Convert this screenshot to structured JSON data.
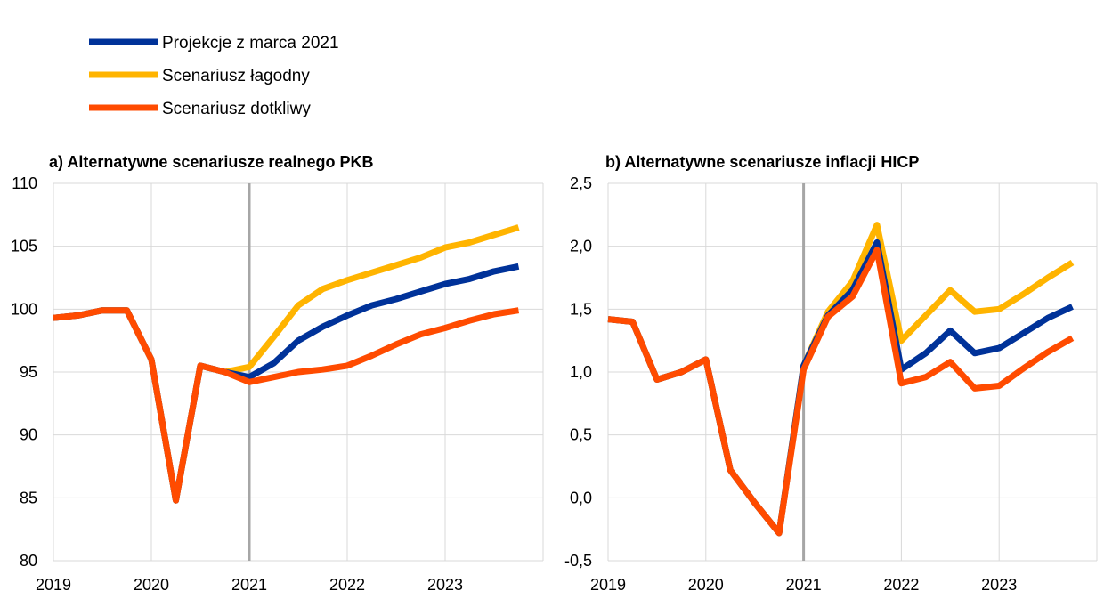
{
  "legend": [
    {
      "label": "Projekcje z marca 2021",
      "color": "#003299"
    },
    {
      "label": "Scenariusz łagodny",
      "color": "#FFB400"
    },
    {
      "label": "Scenariusz dotkliwy",
      "color": "#FF4B00"
    }
  ],
  "chart_data": [
    {
      "type": "line",
      "title": "a) Alternatywne   scenariusze  realnego  PKB",
      "x": [
        "2019Q1",
        "2019Q2",
        "2019Q3",
        "2019Q4",
        "2020Q1",
        "2020Q2",
        "2020Q3",
        "2020Q4",
        "2021Q1",
        "2021Q2",
        "2021Q3",
        "2021Q4",
        "2022Q1",
        "2022Q2",
        "2022Q3",
        "2022Q4",
        "2023Q1",
        "2023Q2",
        "2023Q3",
        "2023Q4"
      ],
      "xtick_labels": [
        "2019",
        "2020",
        "2021",
        "2022",
        "2023"
      ],
      "ytick_labels": [
        "80",
        "85",
        "90",
        "95",
        "100",
        "105",
        "110"
      ],
      "ylim": [
        80,
        110
      ],
      "grid": true,
      "legend_position": "top-left",
      "series": [
        {
          "name": "Projekcje z marca 2021",
          "color": "#003299",
          "values": [
            99.3,
            99.5,
            99.9,
            99.9,
            96.0,
            84.8,
            95.5,
            95.0,
            94.6,
            95.7,
            97.5,
            98.6,
            99.5,
            100.3,
            100.8,
            101.4,
            102.0,
            102.4,
            103.0,
            103.4
          ]
        },
        {
          "name": "Scenariusz łagodny",
          "color": "#FFB400",
          "values": [
            99.3,
            99.5,
            99.9,
            99.9,
            96.0,
            84.8,
            95.5,
            95.0,
            95.4,
            97.8,
            100.3,
            101.6,
            102.3,
            102.9,
            103.5,
            104.1,
            104.9,
            105.3,
            105.9,
            106.5
          ]
        },
        {
          "name": "Scenariusz dotkliwy",
          "color": "#FF4B00",
          "values": [
            99.3,
            99.5,
            99.9,
            99.9,
            96.0,
            84.8,
            95.5,
            95.0,
            94.2,
            94.6,
            95.0,
            95.2,
            95.5,
            96.3,
            97.2,
            98.0,
            98.5,
            99.1,
            99.6,
            99.9
          ]
        }
      ]
    },
    {
      "type": "line",
      "title": "b) Alternatywne  scenariusze  inflacji HICP",
      "x": [
        "2019Q1",
        "2019Q2",
        "2019Q3",
        "2019Q4",
        "2020Q1",
        "2020Q2",
        "2020Q3",
        "2020Q4",
        "2021Q1",
        "2021Q2",
        "2021Q3",
        "2021Q4",
        "2022Q1",
        "2022Q2",
        "2022Q3",
        "2022Q4",
        "2023Q1",
        "2023Q2",
        "2023Q3",
        "2023Q4"
      ],
      "xtick_labels": [
        "2019",
        "2020",
        "2021",
        "2022",
        "2023"
      ],
      "ytick_labels": [
        "-0,5",
        "0,0",
        "0,5",
        "1,0",
        "1,5",
        "2,0",
        "2,5"
      ],
      "ylim": [
        -0.5,
        2.5
      ],
      "grid": true,
      "series": [
        {
          "name": "Projekcje z marca 2021",
          "color": "#003299",
          "values": [
            1.42,
            1.4,
            0.94,
            1.0,
            1.1,
            0.22,
            -0.04,
            -0.28,
            1.05,
            1.45,
            1.65,
            2.03,
            1.02,
            1.15,
            1.33,
            1.15,
            1.19,
            1.31,
            1.43,
            1.52
          ]
        },
        {
          "name": "Scenariusz łagodny",
          "color": "#FFB400",
          "values": [
            1.42,
            1.4,
            0.94,
            1.0,
            1.1,
            0.22,
            -0.04,
            -0.28,
            1.05,
            1.48,
            1.72,
            2.17,
            1.25,
            1.45,
            1.65,
            1.48,
            1.5,
            1.62,
            1.75,
            1.87
          ]
        },
        {
          "name": "Scenariusz dotkliwy",
          "color": "#FF4B00",
          "values": [
            1.42,
            1.4,
            0.94,
            1.0,
            1.1,
            0.22,
            -0.04,
            -0.28,
            1.02,
            1.44,
            1.6,
            1.97,
            0.91,
            0.96,
            1.08,
            0.87,
            0.89,
            1.03,
            1.16,
            1.27
          ]
        }
      ]
    }
  ]
}
